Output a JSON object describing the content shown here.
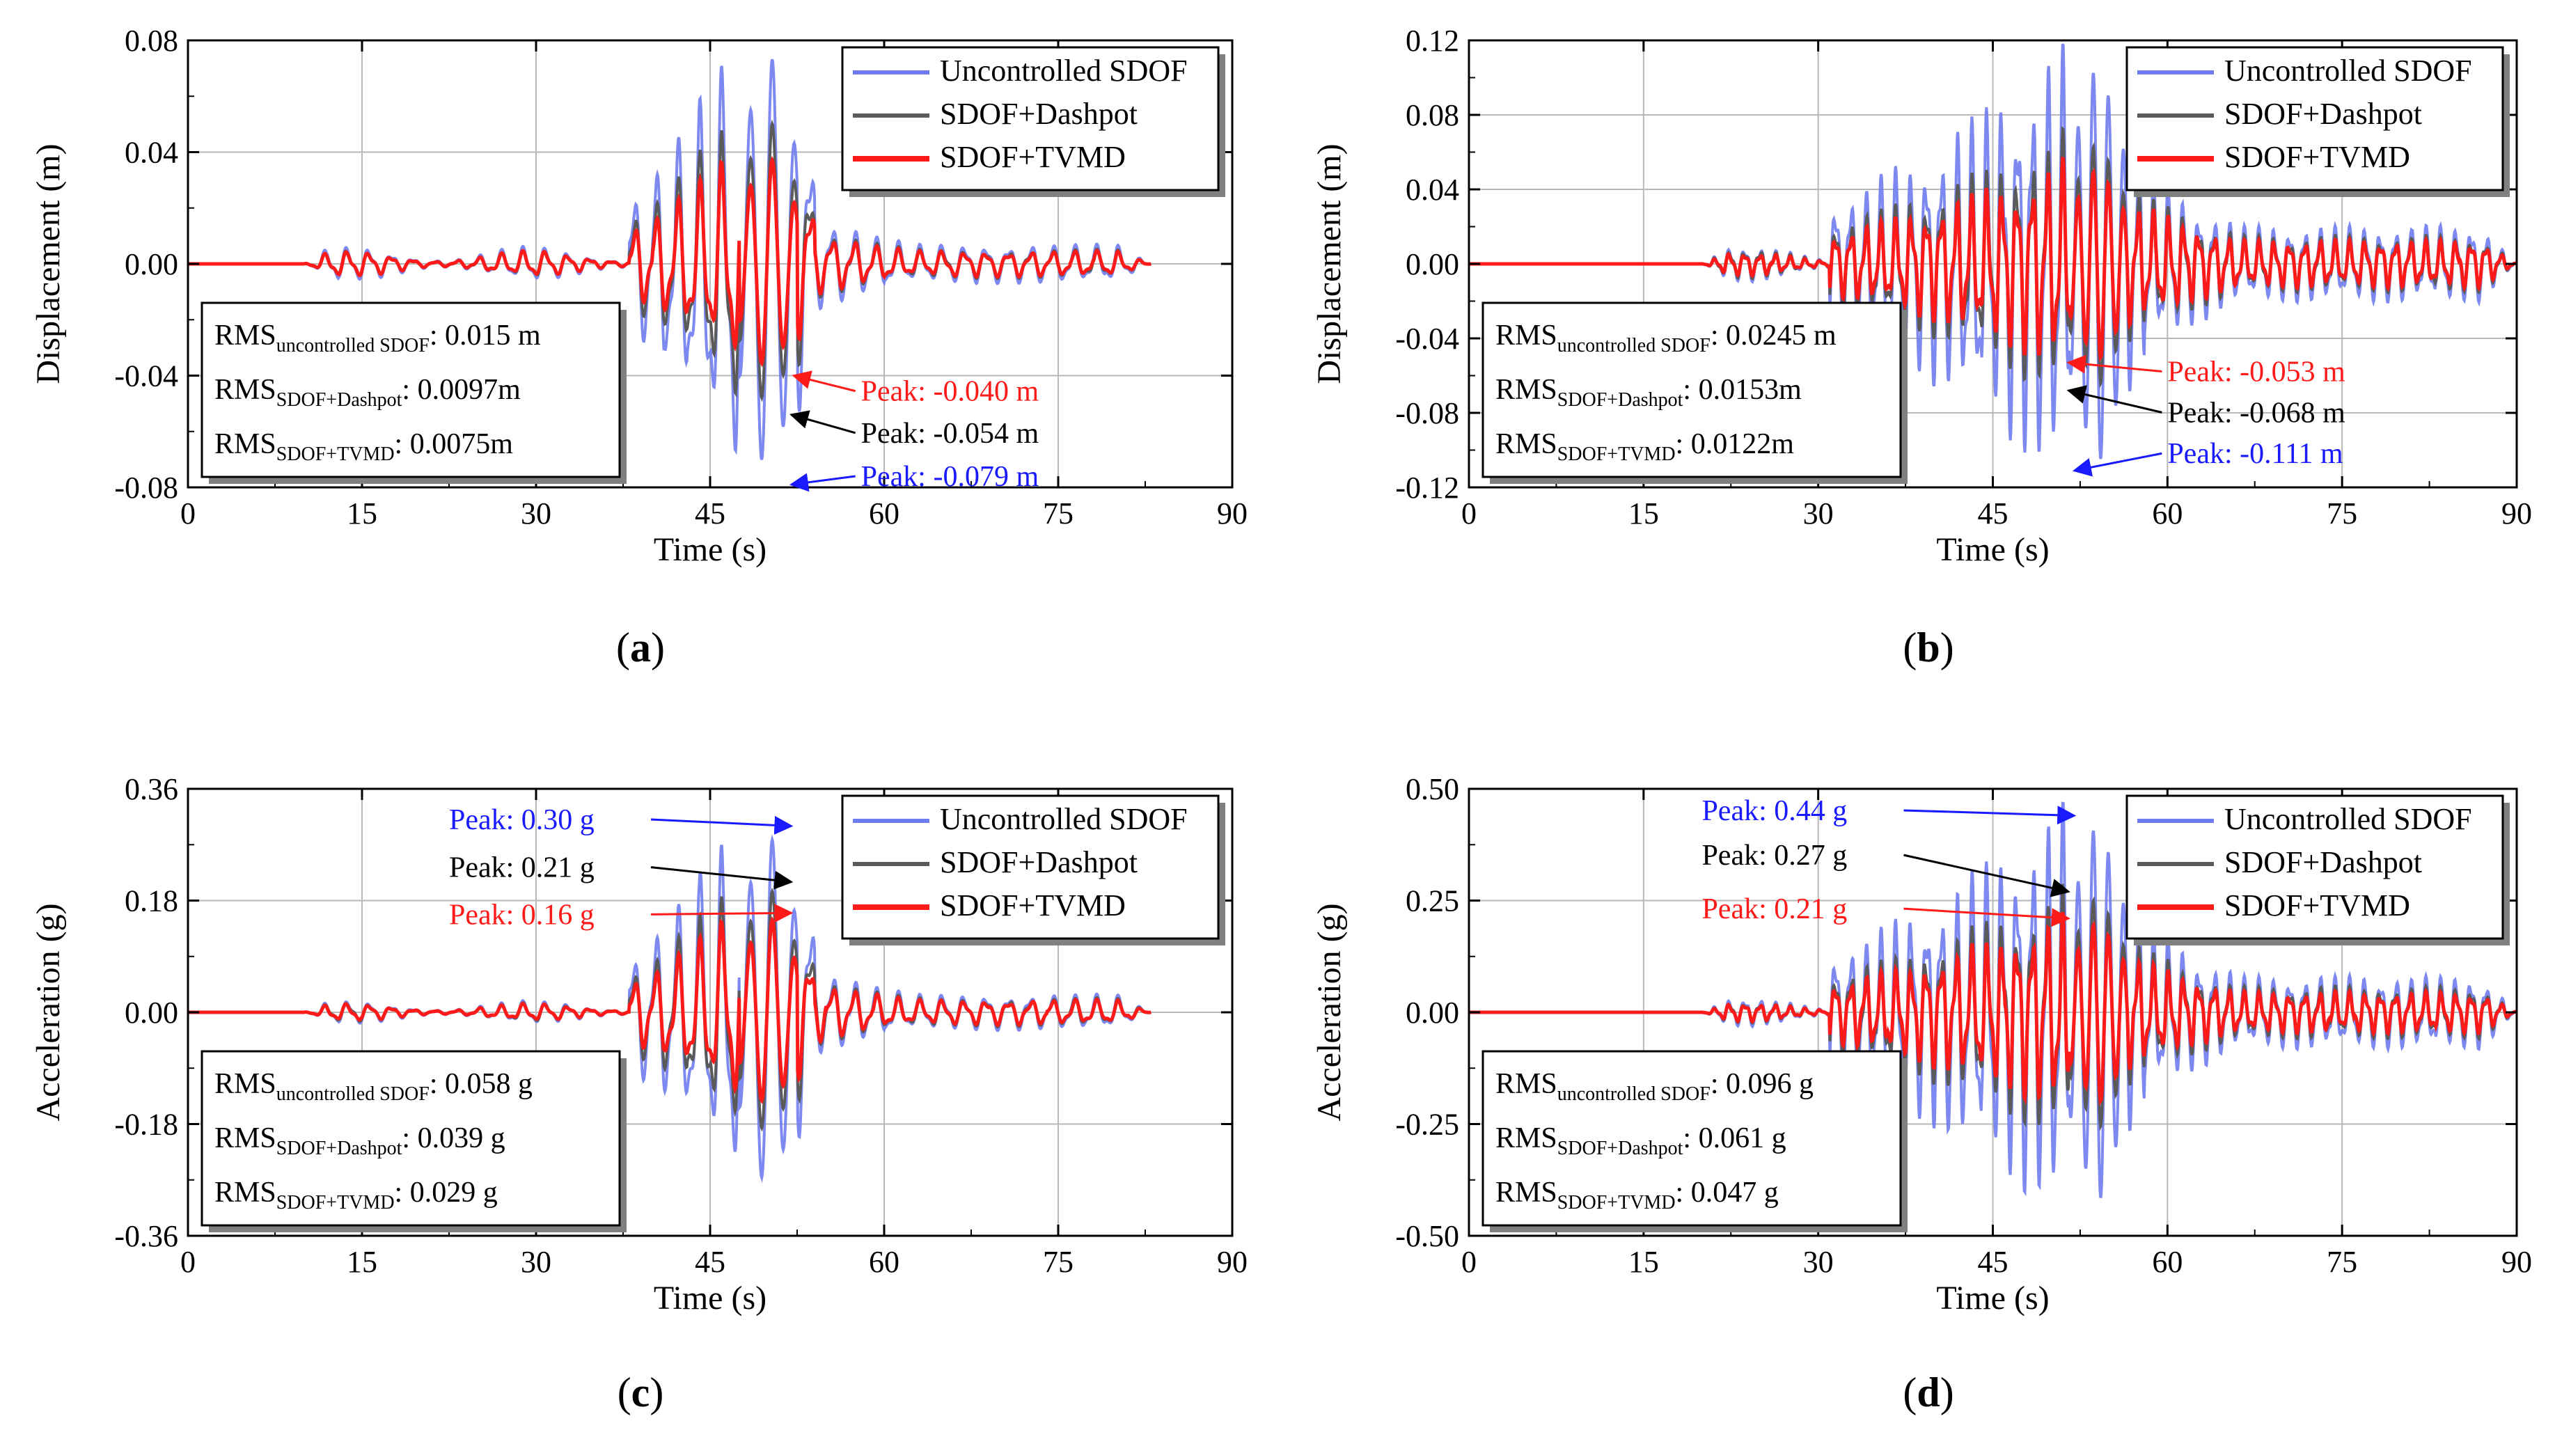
{
  "colors": {
    "uncontrolled": "#6f7cf0",
    "dashpot": "#5a5a5a",
    "tvmd": "#ff1a1a",
    "grid": "#b8b8b8",
    "annot_blue": "#1a1aff",
    "annot_black": "#000000",
    "annot_red": "#ff1a1a"
  },
  "chart_data": [
    {
      "id": "a",
      "type": "line",
      "caption_label": "a",
      "caption": "(a)",
      "xlabel": "Time (s)",
      "ylabel": "Displacement (m)",
      "xlim": [
        0,
        90
      ],
      "ylim": [
        -0.08,
        0.08
      ],
      "xticks": [
        0,
        15,
        30,
        45,
        60,
        75,
        90
      ],
      "xtick_labels": [
        "0",
        "15",
        "30",
        "45",
        "60",
        "75",
        "90"
      ],
      "yticks": [
        -0.08,
        -0.04,
        0.0,
        0.04,
        0.08
      ],
      "ytick_labels": [
        "-0.08",
        "-0.04",
        "0.00",
        "0.04",
        "0.08"
      ],
      "signal": {
        "start": 10,
        "end": 83,
        "mid": 38,
        "peak_time": 48,
        "period": 1.9,
        "hf_period": 0.9
      },
      "series": [
        {
          "name": "Uncontrolled SDOF",
          "color_key": "uncontrolled",
          "amp": 0.079,
          "pre": 0.004,
          "post": 0.012
        },
        {
          "name": "SDOF+Dashpot",
          "color_key": "dashpot",
          "amp": 0.054,
          "pre": 0.003,
          "post": 0.009
        },
        {
          "name": "SDOF+TVMD",
          "color_key": "tvmd",
          "amp": 0.04,
          "pre": 0.003,
          "post": 0.008
        }
      ],
      "legend": [
        "Uncontrolled SDOF",
        "SDOF+Dashpot",
        "SDOF+TVMD"
      ],
      "rms": [
        {
          "prefix": "RMS",
          "sub": "uncontrolled SDOF",
          "value": ": 0.015 m"
        },
        {
          "prefix": "RMS",
          "sub": "SDOF+Dashpot",
          "value": ": 0.0097m"
        },
        {
          "prefix": "RMS",
          "sub": "SDOF+TVMD",
          "value": ": 0.0075m"
        }
      ],
      "annotations": [
        {
          "text": "Peak: -0.040 m",
          "color_key": "annot_red",
          "x": 58,
          "y": -0.049,
          "target_x": 52.2,
          "target_y": -0.04
        },
        {
          "text": "Peak: -0.054 m",
          "color_key": "annot_black",
          "x": 58,
          "y": -0.064,
          "target_x": 52.0,
          "target_y": -0.054
        },
        {
          "text": "Peak: -0.079 m",
          "color_key": "annot_blue",
          "x": 58,
          "y": -0.0795,
          "target_x": 52.0,
          "target_y": -0.079
        }
      ]
    },
    {
      "id": "b",
      "type": "line",
      "caption_label": "b",
      "caption": "(b)",
      "xlabel": "Time (s)",
      "ylabel": "Displacement (m)",
      "xlim": [
        0,
        90
      ],
      "ylim": [
        -0.12,
        0.12
      ],
      "xticks": [
        0,
        15,
        30,
        45,
        60,
        75,
        90
      ],
      "xtick_labels": [
        "0",
        "15",
        "30",
        "45",
        "60",
        "75",
        "90"
      ],
      "yticks": [
        -0.12,
        -0.08,
        -0.04,
        0.0,
        0.04,
        0.08,
        0.12
      ],
      "ytick_labels": [
        "-0.12",
        "-0.08",
        "-0.04",
        "0.00",
        "0.04",
        "0.08",
        "0.12"
      ],
      "signal": {
        "start": 20,
        "end": 90,
        "mid": 31,
        "peak_time": 52,
        "period": 1.3,
        "hf_period": 0.6
      },
      "series": [
        {
          "name": "Uncontrolled SDOF",
          "color_key": "uncontrolled",
          "amp": 0.111,
          "pre": 0.006,
          "post": 0.035
        },
        {
          "name": "SDOF+Dashpot",
          "color_key": "dashpot",
          "amp": 0.068,
          "pre": 0.005,
          "post": 0.026
        },
        {
          "name": "SDOF+TVMD",
          "color_key": "tvmd",
          "amp": 0.053,
          "pre": 0.004,
          "post": 0.022
        }
      ],
      "legend": [
        "Uncontrolled SDOF",
        "SDOF+Dashpot",
        "SDOF+TVMD"
      ],
      "rms": [
        {
          "prefix": "RMS",
          "sub": "uncontrolled SDOF",
          "value": ": 0.0245 m"
        },
        {
          "prefix": "RMS",
          "sub": "SDOF+Dashpot",
          "value": ": 0.0153m"
        },
        {
          "prefix": "RMS",
          "sub": "SDOF+TVMD",
          "value": ": 0.0122m"
        }
      ],
      "annotations": [
        {
          "text": "Peak: -0.053 m",
          "color_key": "annot_red",
          "x": 60,
          "y": -0.063,
          "target_x": 51.5,
          "target_y": -0.053
        },
        {
          "text": "Peak: -0.068 m",
          "color_key": "annot_black",
          "x": 60,
          "y": -0.085,
          "target_x": 51.5,
          "target_y": -0.068
        },
        {
          "text": "Peak: -0.111 m",
          "color_key": "annot_blue",
          "x": 60,
          "y": -0.107,
          "target_x": 52.0,
          "target_y": -0.111
        }
      ]
    },
    {
      "id": "c",
      "type": "line",
      "caption_label": "c",
      "caption": "(c)",
      "xlabel": "Time (s)",
      "ylabel": "Acceleration (g)",
      "xlim": [
        0,
        90
      ],
      "ylim": [
        -0.36,
        0.36
      ],
      "xticks": [
        0,
        15,
        30,
        45,
        60,
        75,
        90
      ],
      "xtick_labels": [
        "0",
        "15",
        "30",
        "45",
        "60",
        "75",
        "90"
      ],
      "yticks": [
        -0.36,
        -0.18,
        0.0,
        0.18,
        0.36
      ],
      "ytick_labels": [
        "-0.36",
        "-0.18",
        "0.00",
        "0.18",
        "0.36"
      ],
      "signal": {
        "start": 10,
        "end": 83,
        "mid": 38,
        "peak_time": 48,
        "period": 1.9,
        "hf_period": 0.9
      },
      "series": [
        {
          "name": "Uncontrolled SDOF",
          "color_key": "uncontrolled",
          "amp": 0.3,
          "pre": 0.012,
          "post": 0.05
        },
        {
          "name": "SDOF+Dashpot",
          "color_key": "dashpot",
          "amp": 0.21,
          "pre": 0.01,
          "post": 0.04
        },
        {
          "name": "SDOF+TVMD",
          "color_key": "tvmd",
          "amp": 0.16,
          "pre": 0.009,
          "post": 0.035
        }
      ],
      "legend": [
        "Uncontrolled SDOF",
        "SDOF+Dashpot",
        "SDOF+TVMD"
      ],
      "rms": [
        {
          "prefix": "RMS",
          "sub": "uncontrolled SDOF",
          "value": ": 0.058 g"
        },
        {
          "prefix": "RMS",
          "sub": "SDOF+Dashpot",
          "value": ": 0.039 g"
        },
        {
          "prefix": "RMS",
          "sub": "SDOF+TVMD",
          "value": ": 0.029 g"
        }
      ],
      "annotations": [
        {
          "text": "Peak: 0.30 g",
          "color_key": "annot_blue",
          "x": 22.5,
          "y": 0.295,
          "target_x": 52.0,
          "target_y": 0.3
        },
        {
          "text": "Peak: 0.21 g",
          "color_key": "annot_black",
          "x": 22.5,
          "y": 0.218,
          "target_x": 52.0,
          "target_y": 0.21
        },
        {
          "text": "Peak: 0.16 g",
          "color_key": "annot_red",
          "x": 22.5,
          "y": 0.142,
          "target_x": 52.0,
          "target_y": 0.16
        }
      ]
    },
    {
      "id": "d",
      "type": "line",
      "caption_label": "d",
      "caption": "(d)",
      "xlabel": "Time (s)",
      "ylabel": "Acceleration (g)",
      "xlim": [
        0,
        90
      ],
      "ylim": [
        -0.5,
        0.5
      ],
      "xticks": [
        0,
        15,
        30,
        45,
        60,
        75,
        90
      ],
      "xtick_labels": [
        "0",
        "15",
        "30",
        "45",
        "60",
        "75",
        "90"
      ],
      "yticks": [
        -0.5,
        -0.25,
        0.0,
        0.25,
        0.5
      ],
      "ytick_labels": [
        "-0.50",
        "-0.25",
        "0.00",
        "0.25",
        "0.50"
      ],
      "signal": {
        "start": 20,
        "end": 90,
        "mid": 31,
        "peak_time": 52,
        "period": 1.3,
        "hf_period": 0.6
      },
      "series": [
        {
          "name": "Uncontrolled SDOF",
          "color_key": "uncontrolled",
          "amp": 0.44,
          "pre": 0.02,
          "post": 0.14
        },
        {
          "name": "SDOF+Dashpot",
          "color_key": "dashpot",
          "amp": 0.27,
          "pre": 0.015,
          "post": 0.1
        },
        {
          "name": "SDOF+TVMD",
          "color_key": "tvmd",
          "amp": 0.21,
          "pre": 0.013,
          "post": 0.08
        }
      ],
      "legend": [
        "Uncontrolled SDOF",
        "SDOF+Dashpot",
        "SDOF+TVMD"
      ],
      "rms": [
        {
          "prefix": "RMS",
          "sub": "uncontrolled SDOF",
          "value": ": 0.096 g"
        },
        {
          "prefix": "RMS",
          "sub": "SDOF+Dashpot",
          "value": ": 0.061 g"
        },
        {
          "prefix": "RMS",
          "sub": "SDOF+TVMD",
          "value": ": 0.047 g"
        }
      ],
      "annotations": [
        {
          "text": "Peak: 0.44 g",
          "color_key": "annot_blue",
          "x": 20,
          "y": 0.43,
          "target_x": 52.0,
          "target_y": 0.44
        },
        {
          "text": "Peak: 0.27 g",
          "color_key": "annot_black",
          "x": 20,
          "y": 0.33,
          "target_x": 51.5,
          "target_y": 0.27
        },
        {
          "text": "Peak: 0.21 g",
          "color_key": "annot_red",
          "x": 20,
          "y": 0.21,
          "target_x": 51.5,
          "target_y": 0.21
        }
      ]
    }
  ]
}
